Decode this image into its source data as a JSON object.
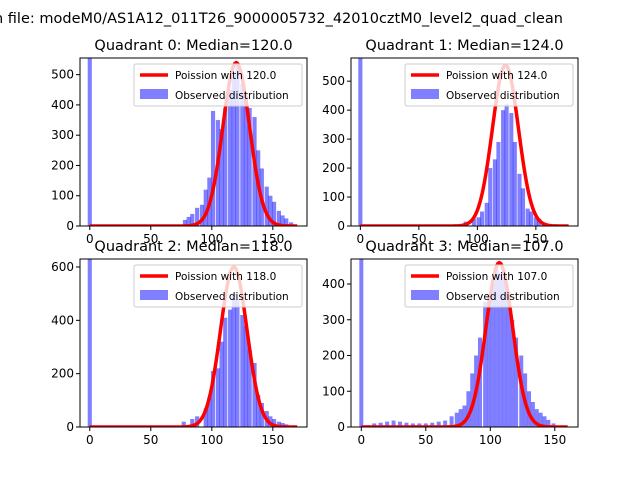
{
  "figure": {
    "suptitle": "n file: modeM0/AS1A12_011T26_9000005732_42010cztM0_level2_quad_clean"
  },
  "chart_data": [
    {
      "type": "bar",
      "title": "Quadrant 0: Median=120.0",
      "xlim": [
        -8,
        178
      ],
      "ylim": [
        0,
        555
      ],
      "xticks": [
        0,
        50,
        100,
        150
      ],
      "yticks": [
        0,
        100,
        200,
        300,
        400,
        500
      ],
      "bin_width": 3.4,
      "legend": {
        "placement": "upper-right",
        "entries": [
          "Poission with 120.0",
          "Observed distribution"
        ]
      },
      "fit_series": {
        "name": "Poission with 120.0",
        "mean": 120.0,
        "peak": 540,
        "color": "#ff0000"
      },
      "observed_series": {
        "name": "Observed distribution",
        "color": "#0000ff",
        "bins": [
          [
            0,
            1000
          ],
          [
            10,
            3
          ],
          [
            30,
            3
          ],
          [
            50,
            3
          ],
          [
            70,
            3
          ],
          [
            78,
            20
          ],
          [
            81,
            30
          ],
          [
            84,
            40
          ],
          [
            88,
            60
          ],
          [
            92,
            70
          ],
          [
            95,
            120
          ],
          [
            98,
            160
          ],
          [
            101,
            380
          ],
          [
            105,
            350
          ],
          [
            108,
            320
          ],
          [
            111,
            390
          ],
          [
            115,
            450
          ],
          [
            118,
            500
          ],
          [
            121,
            530
          ],
          [
            125,
            470
          ],
          [
            128,
            430
          ],
          [
            131,
            390
          ],
          [
            135,
            360
          ],
          [
            138,
            250
          ],
          [
            141,
            190
          ],
          [
            145,
            130
          ],
          [
            148,
            100
          ],
          [
            151,
            80
          ],
          [
            155,
            50
          ],
          [
            158,
            35
          ],
          [
            161,
            25
          ],
          [
            165,
            12
          ]
        ]
      }
    },
    {
      "type": "bar",
      "title": "Quadrant 1: Median=124.0",
      "xlim": [
        -8,
        186
      ],
      "ylim": [
        0,
        580
      ],
      "xticks": [
        0,
        50,
        100,
        150
      ],
      "yticks": [
        0,
        100,
        200,
        300,
        400,
        500
      ],
      "bin_width": 3.5,
      "legend": {
        "placement": "upper-right",
        "entries": [
          "Poission with 124.0",
          "Observed distribution"
        ]
      },
      "fit_series": {
        "name": "Poission with 124.0",
        "mean": 124.0,
        "peak": 555,
        "color": "#ff0000"
      },
      "observed_series": {
        "name": "Observed distribution",
        "color": "#0000ff",
        "bins": [
          [
            0,
            1000
          ],
          [
            20,
            3
          ],
          [
            40,
            3
          ],
          [
            60,
            3
          ],
          [
            80,
            3
          ],
          [
            90,
            15
          ],
          [
            97,
            25
          ],
          [
            101,
            30
          ],
          [
            104,
            50
          ],
          [
            108,
            80
          ],
          [
            111,
            200
          ],
          [
            115,
            230
          ],
          [
            118,
            290
          ],
          [
            122,
            400
          ],
          [
            125,
            420
          ],
          [
            129,
            390
          ],
          [
            132,
            290
          ],
          [
            136,
            180
          ],
          [
            139,
            130
          ],
          [
            143,
            60
          ],
          [
            146,
            50
          ],
          [
            150,
            30
          ],
          [
            153,
            25
          ],
          [
            157,
            12
          ]
        ]
      }
    },
    {
      "type": "bar",
      "title": "Quadrant 2: Median=118.0",
      "xlim": [
        -8,
        178
      ],
      "ylim": [
        0,
        630
      ],
      "xticks": [
        0,
        50,
        100,
        150
      ],
      "yticks": [
        0,
        200,
        400,
        600
      ],
      "bin_width": 3.4,
      "legend": {
        "placement": "upper-right",
        "entries": [
          "Poission with 118.0",
          "Observed distribution"
        ]
      },
      "fit_series": {
        "name": "Poission with 118.0",
        "mean": 118.0,
        "peak": 600,
        "color": "#ff0000"
      },
      "observed_series": {
        "name": "Observed distribution",
        "color": "#0000ff",
        "bins": [
          [
            0,
            1000
          ],
          [
            20,
            3
          ],
          [
            40,
            3
          ],
          [
            60,
            3
          ],
          [
            77,
            20
          ],
          [
            84,
            30
          ],
          [
            88,
            40
          ],
          [
            95,
            70
          ],
          [
            98,
            110
          ],
          [
            101,
            210
          ],
          [
            105,
            220
          ],
          [
            108,
            320
          ],
          [
            111,
            410
          ],
          [
            115,
            440
          ],
          [
            118,
            500
          ],
          [
            121,
            480
          ],
          [
            125,
            420
          ],
          [
            128,
            380
          ],
          [
            131,
            290
          ],
          [
            135,
            240
          ],
          [
            138,
            120
          ],
          [
            141,
            90
          ],
          [
            145,
            60
          ],
          [
            148,
            40
          ],
          [
            151,
            30
          ],
          [
            155,
            20
          ],
          [
            158,
            15
          ],
          [
            161,
            10
          ],
          [
            165,
            5
          ]
        ]
      }
    },
    {
      "type": "bar",
      "title": "Quadrant 3: Median=107.0",
      "xlim": [
        -8,
        168
      ],
      "ylim": [
        0,
        470
      ],
      "xticks": [
        0,
        50,
        100,
        150
      ],
      "yticks": [
        0,
        100,
        200,
        300,
        400
      ],
      "bin_width": 3.1,
      "legend": {
        "placement": "upper-right",
        "entries": [
          "Poission with 107.0",
          "Observed distribution"
        ]
      },
      "fit_series": {
        "name": "Poission with 107.0",
        "mean": 107.0,
        "peak": 460,
        "color": "#ff0000"
      },
      "observed_series": {
        "name": "Observed distribution",
        "color": "#0000ff",
        "bins": [
          [
            0,
            1000
          ],
          [
            5,
            5
          ],
          [
            10,
            10
          ],
          [
            15,
            12
          ],
          [
            20,
            15
          ],
          [
            25,
            18
          ],
          [
            30,
            15
          ],
          [
            35,
            12
          ],
          [
            40,
            10
          ],
          [
            45,
            10
          ],
          [
            50,
            10
          ],
          [
            55,
            12
          ],
          [
            60,
            15
          ],
          [
            65,
            18
          ],
          [
            70,
            30
          ],
          [
            74,
            40
          ],
          [
            77,
            50
          ],
          [
            80,
            60
          ],
          [
            83,
            100
          ],
          [
            86,
            150
          ],
          [
            89,
            200
          ],
          [
            92,
            250
          ],
          [
            96,
            350
          ],
          [
            99,
            370
          ],
          [
            102,
            400
          ],
          [
            105,
            440
          ],
          [
            108,
            430
          ],
          [
            111,
            420
          ],
          [
            114,
            380
          ],
          [
            117,
            300
          ],
          [
            120,
            250
          ],
          [
            124,
            200
          ],
          [
            127,
            150
          ],
          [
            130,
            100
          ],
          [
            133,
            70
          ],
          [
            136,
            50
          ],
          [
            139,
            40
          ],
          [
            142,
            30
          ],
          [
            145,
            20
          ],
          [
            149,
            10
          ]
        ]
      }
    }
  ]
}
